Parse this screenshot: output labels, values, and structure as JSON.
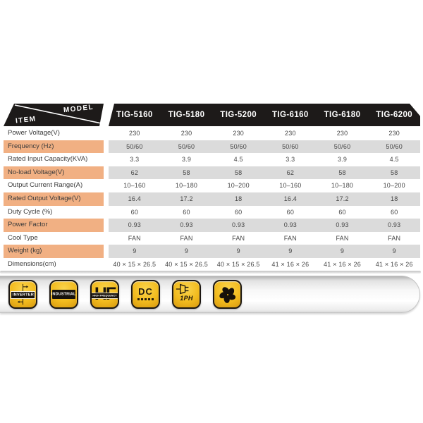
{
  "colors": {
    "header_black": "#1d1a19",
    "highlight_peach": "#f1b083",
    "value_band_grey": "#dbdbdb",
    "badge_yellow": "#f2bb1e",
    "badge_border_black": "#1c1712"
  },
  "table": {
    "corner": {
      "top_label": "MODEL",
      "bottom_label": "ITEM"
    },
    "models": [
      "TIG-5160",
      "TIG-5180",
      "TIG-5200",
      "TIG-6160",
      "TIG-6180",
      "TIG-6200"
    ],
    "rows": [
      {
        "label": "Power Voltage(V)",
        "values": [
          "230",
          "230",
          "230",
          "230",
          "230",
          "230"
        ],
        "highlight": false
      },
      {
        "label": "Frequency (Hz)",
        "values": [
          "50/60",
          "50/60",
          "50/60",
          "50/60",
          "50/60",
          "50/60"
        ],
        "highlight": true
      },
      {
        "label": "Rated Input Capacity(KVA)",
        "values": [
          "3.3",
          "3.9",
          "4.5",
          "3.3",
          "3.9",
          "4.5"
        ],
        "highlight": false
      },
      {
        "label": "No-load Voltage(V)",
        "values": [
          "62",
          "58",
          "58",
          "62",
          "58",
          "58"
        ],
        "highlight": true
      },
      {
        "label": "Output Current Range(A)",
        "values": [
          "10–160",
          "10–180",
          "10–200",
          "10–160",
          "10–180",
          "10–200"
        ],
        "highlight": false
      },
      {
        "label": "Rated Output Voltage(V)",
        "values": [
          "16.4",
          "17.2",
          "18",
          "16.4",
          "17.2",
          "18"
        ],
        "highlight": true
      },
      {
        "label": "Duty Cycle (%)",
        "values": [
          "60",
          "60",
          "60",
          "60",
          "60",
          "60"
        ],
        "highlight": false
      },
      {
        "label": "Power Factor",
        "values": [
          "0.93",
          "0.93",
          "0.93",
          "0.93",
          "0.93",
          "0.93"
        ],
        "highlight": true
      },
      {
        "label": "Cool Type",
        "values": [
          "FAN",
          "FAN",
          "FAN",
          "FAN",
          "FAN",
          "FAN"
        ],
        "highlight": false
      },
      {
        "label": "Weight (kg)",
        "values": [
          "9",
          "9",
          "9",
          "9",
          "9",
          "9"
        ],
        "highlight": true
      },
      {
        "label": "Dimensions(cm)",
        "values": [
          "40 × 15 × 26.5",
          "40 × 15 × 26.5",
          "40 × 15 × 26.5",
          "41 × 16 × 26",
          "41 × 16 × 26",
          "41 × 16 × 26"
        ],
        "highlight": false
      }
    ]
  },
  "badges": {
    "inverter": {
      "label": "INVERTER"
    },
    "industrial": {
      "label": "INDUSTRIAL"
    },
    "hf": {
      "letters": "HF",
      "banner": "HIGH FREQUENCY"
    },
    "dc": {
      "label": "DC"
    },
    "single_phase": {
      "label": "1PH"
    },
    "fan": {
      "label": ""
    }
  }
}
